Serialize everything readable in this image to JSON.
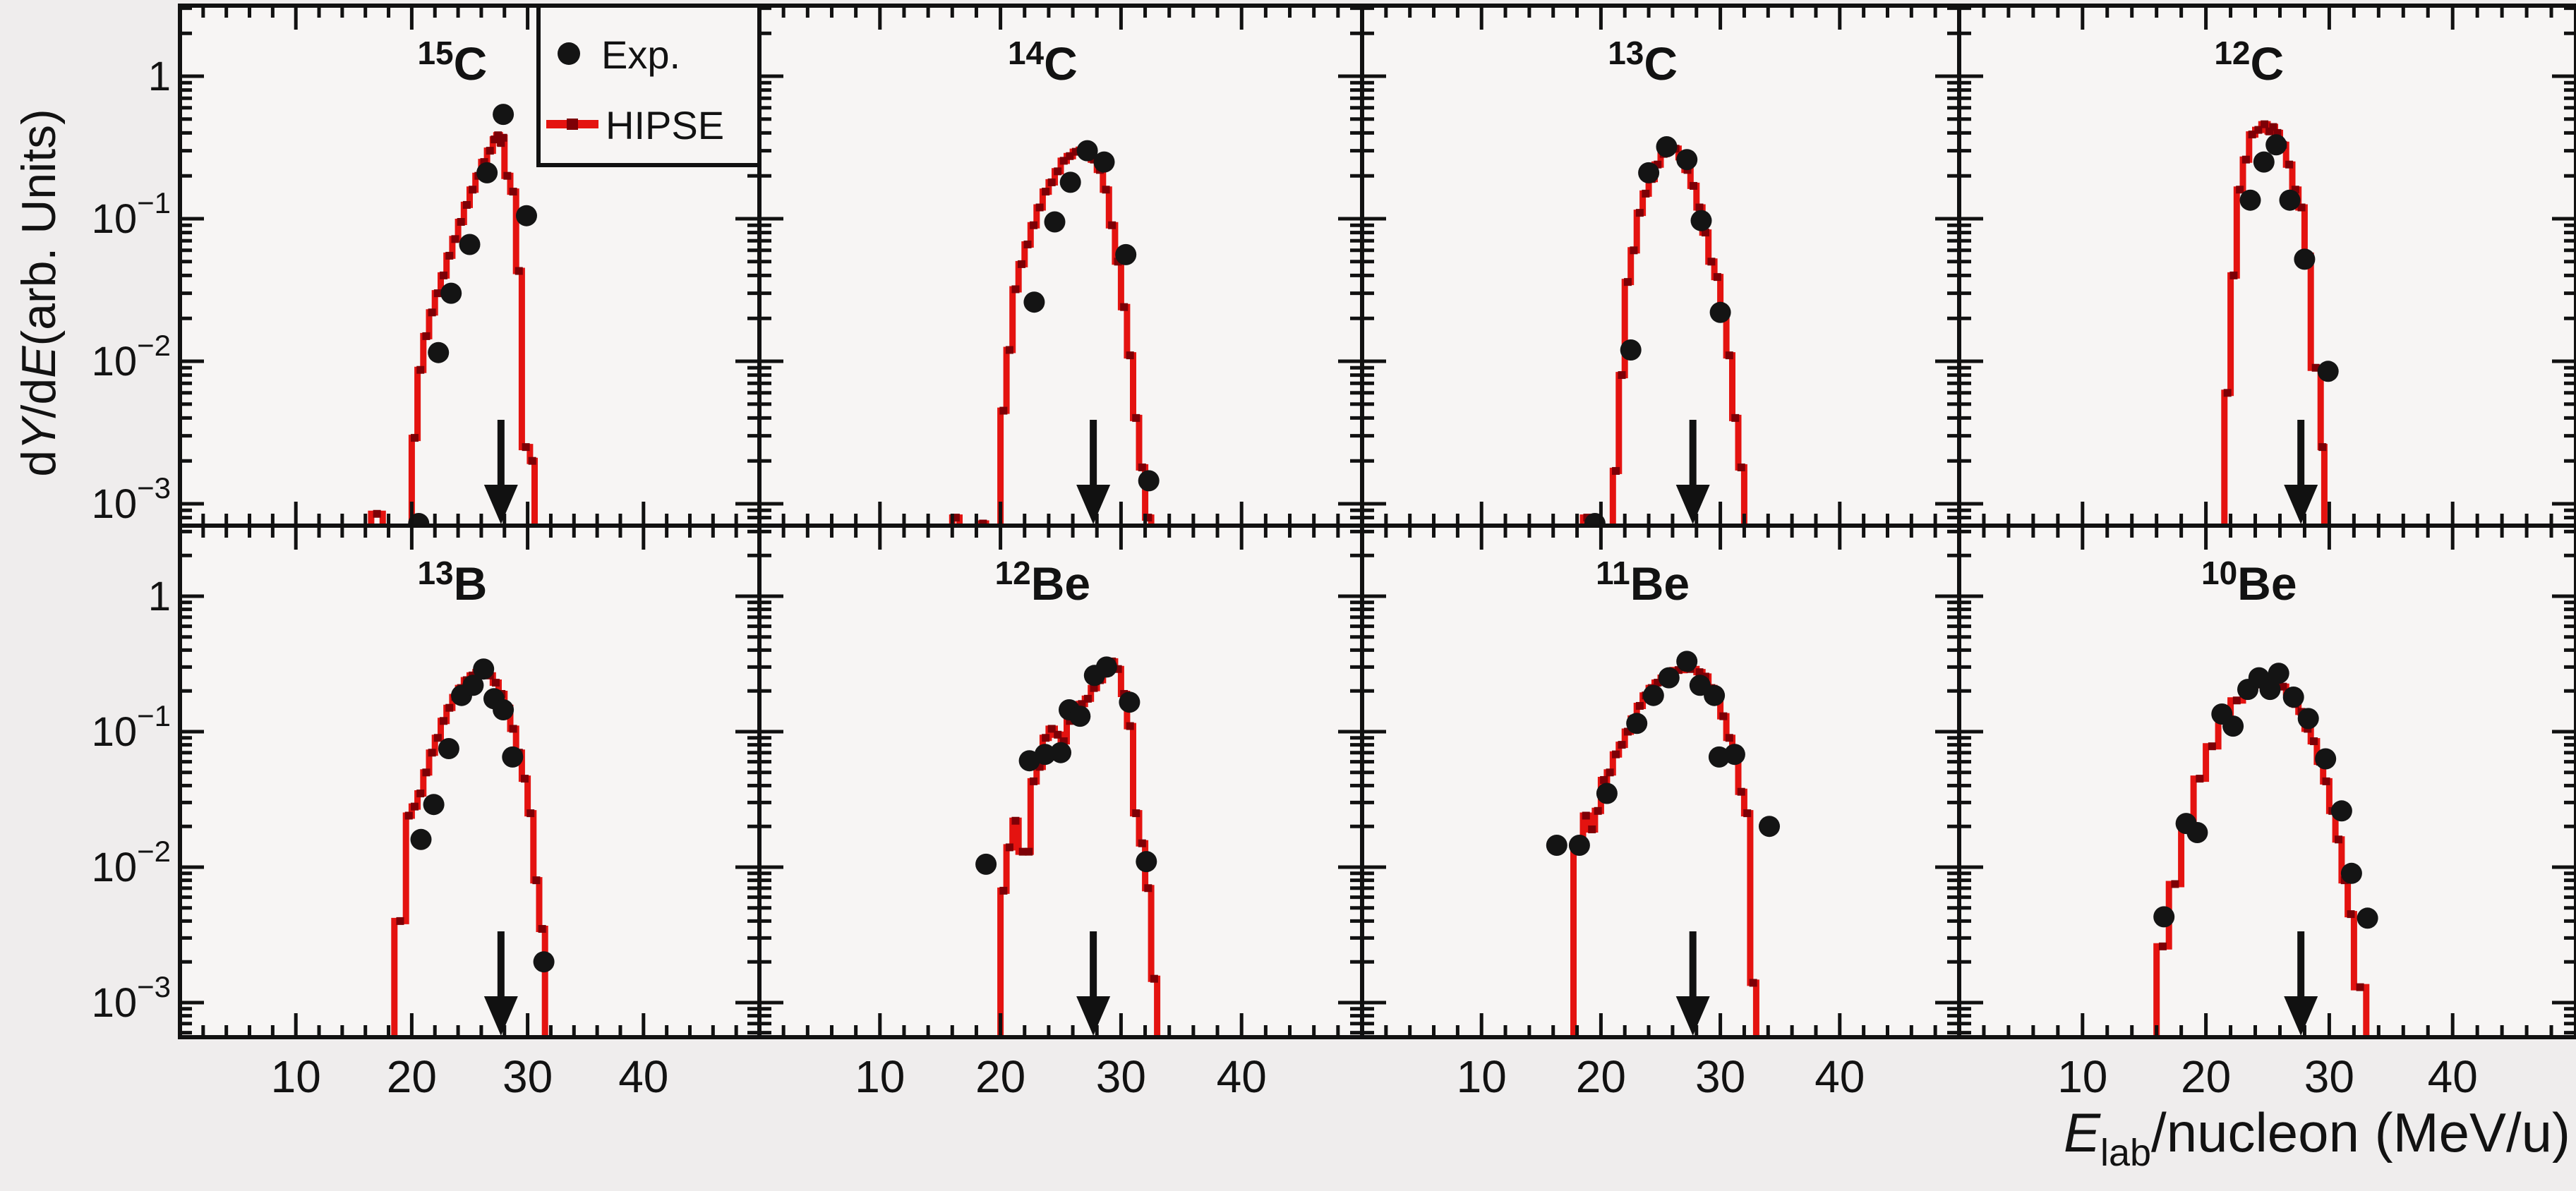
{
  "figure": {
    "kind": "multi-panel energy spectra",
    "background_outer": "#efeded",
    "background_panel": "#f7f5f4",
    "frame_color": "#111111",
    "hist_color": "#e41310",
    "hist_marker_color": "#7d0006",
    "exp_marker_color": "#141414",
    "arrow_color": "#111111"
  },
  "legend": {
    "exp_label": "Exp.",
    "hipse_label": "HIPSE"
  },
  "chart_data": {
    "type": "bar",
    "note": "2x4 grid of step histograms (HIPSE model) with experimental scatter points, log y-scale",
    "title": "",
    "xlabel": "E_lab/nucleon (MeV/u)",
    "ylabel": "dY/dE(arb. Units)",
    "x_axis": {
      "range": [
        0,
        50
      ],
      "major_ticks": [
        10,
        20,
        30,
        40
      ],
      "minor_step": 2,
      "title_main": "E",
      "title_sub": "lab",
      "title_rest": "/nucleon (MeV/u)"
    },
    "y_axis": {
      "scale": "log",
      "range_min": 0.0007,
      "range_max": 3.1,
      "decade_labels": [
        {
          "base": "1",
          "exp": ""
        },
        {
          "base": "10",
          "exp": "-1"
        },
        {
          "base": "10",
          "exp": "-2"
        },
        {
          "base": "10",
          "exp": "-3"
        }
      ],
      "title_parts": [
        {
          "t": "d",
          "i": false
        },
        {
          "t": "Y",
          "i": true
        },
        {
          "t": "/d",
          "i": false
        },
        {
          "t": "E",
          "i": true
        },
        {
          "t": "(arb. Units)",
          "i": false
        }
      ]
    },
    "legend_position": "top-right of first panel",
    "grid": {
      "rows": 2,
      "cols": 4
    },
    "arrow_x": 27.7,
    "panels": [
      {
        "id": "15C",
        "sup": "15",
        "sym": "C",
        "hist": [
          [
            16.5,
            0.00085
          ],
          [
            17.5,
            0
          ],
          [
            20.0,
            0.0029
          ],
          [
            20.5,
            0.0087
          ],
          [
            21.0,
            0.015
          ],
          [
            21.5,
            0.022
          ],
          [
            22.0,
            0.03
          ],
          [
            22.5,
            0.04
          ],
          [
            23.0,
            0.055
          ],
          [
            23.5,
            0.072
          ],
          [
            24.0,
            0.095
          ],
          [
            24.5,
            0.125
          ],
          [
            25.0,
            0.16
          ],
          [
            25.5,
            0.2
          ],
          [
            26.0,
            0.25
          ],
          [
            26.5,
            0.3
          ],
          [
            27.0,
            0.36
          ],
          [
            27.3,
            0.385
          ],
          [
            27.6,
            0.34
          ],
          [
            27.8,
            0.37
          ],
          [
            28.0,
            0.2
          ],
          [
            28.5,
            0.155
          ],
          [
            29.0,
            0.043
          ],
          [
            29.5,
            0.0025
          ],
          [
            30.2,
            0.002
          ],
          [
            30.6,
            0
          ]
        ],
        "exp": [
          [
            20.6,
            0.0007
          ],
          [
            22.3,
            0.0115
          ],
          [
            23.4,
            0.03
          ],
          [
            25.0,
            0.066
          ],
          [
            26.5,
            0.21
          ],
          [
            27.9,
            0.54
          ],
          [
            29.9,
            0.105
          ]
        ]
      },
      {
        "id": "14C",
        "sup": "14",
        "sym": "C",
        "hist": [
          [
            16.0,
            0.0008
          ],
          [
            16.6,
            0
          ],
          [
            18.3,
            0.0007
          ],
          [
            18.8,
            0
          ],
          [
            20.0,
            0.0045
          ],
          [
            20.5,
            0.012
          ],
          [
            21.0,
            0.032
          ],
          [
            21.5,
            0.048
          ],
          [
            22.0,
            0.066
          ],
          [
            22.5,
            0.09
          ],
          [
            23.0,
            0.12
          ],
          [
            23.5,
            0.155
          ],
          [
            24.0,
            0.18
          ],
          [
            24.5,
            0.215
          ],
          [
            25.0,
            0.255
          ],
          [
            25.5,
            0.275
          ],
          [
            26.0,
            0.295
          ],
          [
            26.5,
            0.305
          ],
          [
            27.0,
            0.29
          ],
          [
            27.5,
            0.26
          ],
          [
            28.0,
            0.22
          ],
          [
            28.5,
            0.16
          ],
          [
            29.0,
            0.09
          ],
          [
            29.5,
            0.05
          ],
          [
            30.0,
            0.024
          ],
          [
            30.5,
            0.011
          ],
          [
            31.0,
            0.004
          ],
          [
            31.5,
            0.0018
          ],
          [
            32.0,
            0.0008
          ],
          [
            32.5,
            0
          ]
        ],
        "exp": [
          [
            22.8,
            0.026
          ],
          [
            24.5,
            0.095
          ],
          [
            25.8,
            0.18
          ],
          [
            27.2,
            0.3
          ],
          [
            28.6,
            0.25
          ],
          [
            30.4,
            0.056
          ],
          [
            32.3,
            0.00145
          ]
        ]
      },
      {
        "id": "13C",
        "sup": "13",
        "sym": "C",
        "hist": [
          [
            18.5,
            0.0008
          ],
          [
            19.2,
            0
          ],
          [
            21.0,
            0.0017
          ],
          [
            21.5,
            0.008
          ],
          [
            22.0,
            0.036
          ],
          [
            22.5,
            0.06
          ],
          [
            23.0,
            0.11
          ],
          [
            23.5,
            0.15
          ],
          [
            24.0,
            0.19
          ],
          [
            24.5,
            0.24
          ],
          [
            25.0,
            0.285
          ],
          [
            25.5,
            0.32
          ],
          [
            26.0,
            0.31
          ],
          [
            26.5,
            0.27
          ],
          [
            27.0,
            0.22
          ],
          [
            27.5,
            0.17
          ],
          [
            28.0,
            0.12
          ],
          [
            28.5,
            0.08
          ],
          [
            29.0,
            0.05
          ],
          [
            29.5,
            0.039
          ],
          [
            30.0,
            0.022
          ],
          [
            30.5,
            0.011
          ],
          [
            31.0,
            0.004
          ],
          [
            31.5,
            0.0018
          ],
          [
            32.0,
            0
          ]
        ],
        "exp": [
          [
            19.5,
            0.0007
          ],
          [
            22.5,
            0.012
          ],
          [
            24.0,
            0.21
          ],
          [
            25.5,
            0.32
          ],
          [
            27.2,
            0.26
          ],
          [
            28.4,
            0.097
          ],
          [
            30.0,
            0.022
          ]
        ]
      },
      {
        "id": "12C",
        "sup": "12",
        "sym": "C",
        "hist": [
          [
            21.5,
            0.006
          ],
          [
            22.0,
            0.04
          ],
          [
            22.5,
            0.16
          ],
          [
            23.0,
            0.26
          ],
          [
            23.5,
            0.39
          ],
          [
            24.0,
            0.42
          ],
          [
            24.5,
            0.46
          ],
          [
            25.0,
            0.41
          ],
          [
            25.3,
            0.44
          ],
          [
            25.6,
            0.4
          ],
          [
            26.0,
            0.33
          ],
          [
            26.5,
            0.24
          ],
          [
            27.0,
            0.16
          ],
          [
            27.5,
            0.12
          ],
          [
            28.0,
            0.055
          ],
          [
            28.5,
            0.009
          ],
          [
            29.3,
            0.0025
          ],
          [
            29.6,
            0
          ]
        ],
        "exp": [
          [
            23.6,
            0.135
          ],
          [
            24.7,
            0.25
          ],
          [
            25.7,
            0.33
          ],
          [
            26.8,
            0.135
          ],
          [
            28.0,
            0.052
          ],
          [
            29.9,
            0.0085
          ]
        ]
      },
      {
        "id": "13B",
        "sup": "13",
        "sym": "B",
        "hist": [
          [
            18.5,
            0.004
          ],
          [
            19.5,
            0.024
          ],
          [
            20.0,
            0.028
          ],
          [
            20.5,
            0.035
          ],
          [
            21.0,
            0.05
          ],
          [
            21.5,
            0.07
          ],
          [
            22.0,
            0.09
          ],
          [
            22.5,
            0.12
          ],
          [
            23.0,
            0.15
          ],
          [
            23.5,
            0.18
          ],
          [
            24.0,
            0.21
          ],
          [
            24.5,
            0.24
          ],
          [
            25.0,
            0.26
          ],
          [
            25.5,
            0.275
          ],
          [
            26.0,
            0.28
          ],
          [
            26.5,
            0.26
          ],
          [
            27.0,
            0.23
          ],
          [
            27.5,
            0.19
          ],
          [
            28.0,
            0.15
          ],
          [
            28.5,
            0.105
          ],
          [
            29.0,
            0.07
          ],
          [
            29.5,
            0.045
          ],
          [
            30.0,
            0.025
          ],
          [
            30.5,
            0.008
          ],
          [
            31.0,
            0.0035
          ],
          [
            31.5,
            0
          ]
        ],
        "exp": [
          [
            20.8,
            0.016
          ],
          [
            21.9,
            0.029
          ],
          [
            23.2,
            0.075
          ],
          [
            24.3,
            0.185
          ],
          [
            25.3,
            0.22
          ],
          [
            26.2,
            0.29
          ],
          [
            27.1,
            0.175
          ],
          [
            27.9,
            0.145
          ],
          [
            28.7,
            0.065
          ],
          [
            31.4,
            0.002
          ]
        ]
      },
      {
        "id": "12Be",
        "sup": "12",
        "sym": "Be",
        "hist": [
          [
            20.0,
            0.0067
          ],
          [
            20.5,
            0.014
          ],
          [
            21.0,
            0.022
          ],
          [
            21.5,
            0.013
          ],
          [
            22.2,
            0.013
          ],
          [
            22.5,
            0.043
          ],
          [
            23.0,
            0.055
          ],
          [
            23.5,
            0.09
          ],
          [
            24.0,
            0.105
          ],
          [
            24.5,
            0.095
          ],
          [
            25.0,
            0.085
          ],
          [
            25.5,
            0.12
          ],
          [
            26.0,
            0.135
          ],
          [
            26.5,
            0.16
          ],
          [
            27.0,
            0.175
          ],
          [
            27.5,
            0.21
          ],
          [
            28.0,
            0.24
          ],
          [
            28.5,
            0.27
          ],
          [
            29.0,
            0.33
          ],
          [
            29.5,
            0.29
          ],
          [
            30.0,
            0.19
          ],
          [
            30.5,
            0.11
          ],
          [
            31.0,
            0.025
          ],
          [
            31.5,
            0.015
          ],
          [
            32.0,
            0.007
          ],
          [
            32.5,
            0.0015
          ],
          [
            33.0,
            0
          ]
        ],
        "exp": [
          [
            18.8,
            0.0105
          ],
          [
            22.4,
            0.061
          ],
          [
            23.7,
            0.068
          ],
          [
            25.0,
            0.07
          ],
          [
            25.7,
            0.145
          ],
          [
            26.6,
            0.13
          ],
          [
            27.8,
            0.26
          ],
          [
            28.8,
            0.3
          ],
          [
            30.7,
            0.165
          ],
          [
            32.1,
            0.011
          ]
        ]
      },
      {
        "id": "11Be",
        "sup": "11",
        "sym": "Be",
        "hist": [
          [
            17.7,
            0.0145
          ],
          [
            18.5,
            0.024
          ],
          [
            19.0,
            0.019
          ],
          [
            19.5,
            0.026
          ],
          [
            20.0,
            0.044
          ],
          [
            20.5,
            0.05
          ],
          [
            21.0,
            0.068
          ],
          [
            21.5,
            0.08
          ],
          [
            22.0,
            0.1
          ],
          [
            22.5,
            0.125
          ],
          [
            23.0,
            0.155
          ],
          [
            23.5,
            0.185
          ],
          [
            24.0,
            0.21
          ],
          [
            24.5,
            0.23
          ],
          [
            25.0,
            0.25
          ],
          [
            25.5,
            0.265
          ],
          [
            26.0,
            0.285
          ],
          [
            27.0,
            0.29
          ],
          [
            28.0,
            0.275
          ],
          [
            28.5,
            0.255
          ],
          [
            29.0,
            0.21
          ],
          [
            29.5,
            0.18
          ],
          [
            30.0,
            0.13
          ],
          [
            30.5,
            0.09
          ],
          [
            31.0,
            0.065
          ],
          [
            31.5,
            0.036
          ],
          [
            32.0,
            0.025
          ],
          [
            32.5,
            0.0014
          ],
          [
            33.0,
            0
          ]
        ],
        "exp": [
          [
            16.3,
            0.0145
          ],
          [
            18.2,
            0.0145
          ],
          [
            20.5,
            0.035
          ],
          [
            23.0,
            0.115
          ],
          [
            24.4,
            0.185
          ],
          [
            25.7,
            0.25
          ],
          [
            27.2,
            0.33
          ],
          [
            28.3,
            0.22
          ],
          [
            29.5,
            0.185
          ],
          [
            29.9,
            0.065
          ],
          [
            31.2,
            0.068
          ],
          [
            34.1,
            0.02
          ]
        ]
      },
      {
        "id": "10Be",
        "sup": "10",
        "sym": "Be",
        "hist": [
          [
            16.0,
            0.0026
          ],
          [
            17.0,
            0.0075
          ],
          [
            18.0,
            0.021
          ],
          [
            19.0,
            0.045
          ],
          [
            20.0,
            0.078
          ],
          [
            21.0,
            0.125
          ],
          [
            22.0,
            0.17
          ],
          [
            23.0,
            0.21
          ],
          [
            23.5,
            0.23
          ],
          [
            24.0,
            0.24
          ],
          [
            24.5,
            0.22
          ],
          [
            25.0,
            0.24
          ],
          [
            25.5,
            0.235
          ],
          [
            26.0,
            0.215
          ],
          [
            26.5,
            0.195
          ],
          [
            27.0,
            0.16
          ],
          [
            27.5,
            0.14
          ],
          [
            28.0,
            0.105
          ],
          [
            28.5,
            0.085
          ],
          [
            29.0,
            0.06
          ],
          [
            29.5,
            0.043
          ],
          [
            30.0,
            0.026
          ],
          [
            30.5,
            0.016
          ],
          [
            31.0,
            0.008
          ],
          [
            31.5,
            0.0045
          ],
          [
            32.0,
            0.0013
          ],
          [
            33.0,
            0
          ]
        ],
        "exp": [
          [
            16.6,
            0.0043
          ],
          [
            18.4,
            0.021
          ],
          [
            19.3,
            0.018
          ],
          [
            21.3,
            0.135
          ],
          [
            22.2,
            0.11
          ],
          [
            23.4,
            0.205
          ],
          [
            24.3,
            0.25
          ],
          [
            25.2,
            0.205
          ],
          [
            25.9,
            0.27
          ],
          [
            27.1,
            0.18
          ],
          [
            28.3,
            0.125
          ],
          [
            29.7,
            0.063
          ],
          [
            31.0,
            0.026
          ],
          [
            31.8,
            0.009
          ],
          [
            33.1,
            0.0042
          ]
        ]
      }
    ]
  }
}
